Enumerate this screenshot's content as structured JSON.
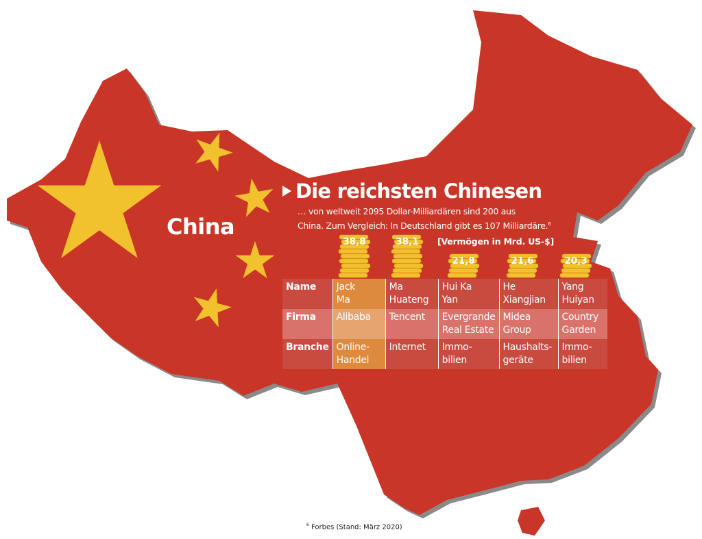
{
  "map": {
    "country_label": "China",
    "colors": {
      "land": "#c93527",
      "shadow": "#8a8a8a",
      "stars": "#f2c12e"
    }
  },
  "title": "Die reichsten Chinesen",
  "subtitle": {
    "line1": "… von weltweit 2095 Dollar-Milliardären sind 200 aus",
    "line2": "China. Zum Vergleich: In Deutschland gibt es 107 Milliardäre.",
    "footnote_ref": "6"
  },
  "unit_label": "[Vermögen in Mrd. US-$]",
  "chart_data": {
    "type": "bar",
    "style": "coin-stack pictogram",
    "categories": [
      "Jack Ma",
      "Ma Huateng",
      "Hui Ka Yan",
      "He Xiangjian",
      "Yang Huiyan"
    ],
    "values": [
      38.8,
      38.1,
      21.8,
      21.6,
      20.3
    ],
    "value_labels": [
      "38,8",
      "38,1",
      "21,8",
      "21,6",
      "20,3"
    ],
    "ylabel": "[Vermögen in Mrd. US-$]",
    "bar_color": "#f2c12e"
  },
  "table": {
    "row_labels": [
      "Name",
      "Firma",
      "Branche"
    ],
    "columns": [
      {
        "name": [
          "Jack",
          "Ma"
        ],
        "firma": [
          "Alibaba",
          ""
        ],
        "branche": [
          "Online-",
          "Handel"
        ]
      },
      {
        "name": [
          "Ma",
          "Huateng"
        ],
        "firma": [
          "Tencent",
          ""
        ],
        "branche": [
          "Internet",
          ""
        ]
      },
      {
        "name": [
          "Hui Ka",
          "Yan"
        ],
        "firma": [
          "Evergrande",
          "Real Estate"
        ],
        "branche": [
          "Immo-",
          "bilien"
        ]
      },
      {
        "name": [
          "He",
          "Xiangjian"
        ],
        "firma": [
          "Midea",
          "Group"
        ],
        "branche": [
          "Haushalts-",
          "geräte"
        ]
      },
      {
        "name": [
          "Yang",
          "Huiyan"
        ],
        "firma": [
          "Country",
          "Garden"
        ],
        "branche": [
          "Immo-",
          "bilien"
        ]
      }
    ],
    "highlight_color": "#de8a3e"
  },
  "footnote": {
    "ref": "6",
    "text": "Forbes (Stand: März 2020)"
  }
}
